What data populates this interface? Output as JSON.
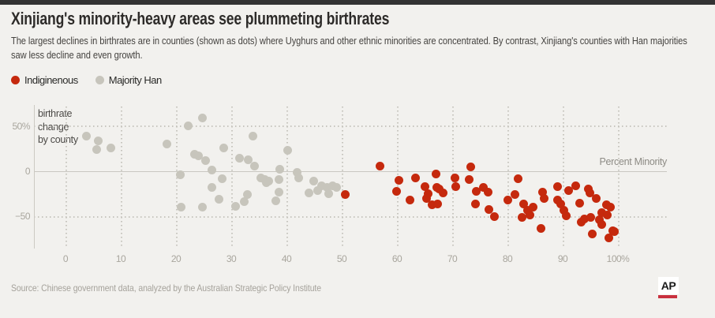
{
  "page": {
    "background": "#f2f1ee",
    "top_bar_color": "#333333"
  },
  "header": {
    "title": "Xinjiang's minority-heavy areas see plummeting birthrates",
    "subtitle": "The largest declines in birthrates are in counties (shown as dots) where Uyghurs and other ethnic minorities are concentrated. By contrast, Xinjiang's counties with Han majorities saw less decline and even growth."
  },
  "legend": {
    "items": [
      {
        "label": "Indiginenous",
        "color": "#c5290d"
      },
      {
        "label": "Majority Han",
        "color": "#c7c5bc"
      }
    ]
  },
  "chart_data": {
    "type": "scatter",
    "title": "Xinjiang's minority-heavy areas see plummeting birthrates",
    "xlabel": "Percent Minority",
    "ylabel": "birthrate change by county",
    "ylabel_lines": [
      "birthrate",
      "change",
      "by county"
    ],
    "xlim": [
      -6,
      109
    ],
    "ylim": [
      -85,
      72
    ],
    "grid": "dotted",
    "legend_position": "top-left",
    "x_ticks": [
      {
        "value": 0,
        "label": "0"
      },
      {
        "value": 10,
        "label": "10"
      },
      {
        "value": 20,
        "label": "20"
      },
      {
        "value": 30,
        "label": "30"
      },
      {
        "value": 40,
        "label": "40"
      },
      {
        "value": 50,
        "label": "50"
      },
      {
        "value": 60,
        "label": "60"
      },
      {
        "value": 70,
        "label": "70"
      },
      {
        "value": 80,
        "label": "80"
      },
      {
        "value": 90,
        "label": "90"
      },
      {
        "value": 100,
        "label": "100%"
      }
    ],
    "y_ticks": [
      {
        "value": 50,
        "label": "50%"
      },
      {
        "value": 0,
        "label": "0"
      },
      {
        "value": -50,
        "label": "−50"
      }
    ],
    "series": [
      {
        "name": "Majority Han",
        "color": "#c7c5bc",
        "points": [
          [
            3.8,
            39
          ],
          [
            5.9,
            34
          ],
          [
            5.7,
            24
          ],
          [
            8.2,
            26
          ],
          [
            18.3,
            30
          ],
          [
            20.8,
            -4
          ],
          [
            20.9,
            -40
          ],
          [
            22.2,
            50
          ],
          [
            23.3,
            19
          ],
          [
            24.1,
            17
          ],
          [
            24.8,
            59
          ],
          [
            25.3,
            12
          ],
          [
            24.8,
            -40
          ],
          [
            26.5,
            1
          ],
          [
            26.5,
            -18
          ],
          [
            27.8,
            -31
          ],
          [
            28.4,
            -8
          ],
          [
            28.6,
            26
          ],
          [
            31.5,
            14
          ],
          [
            30.8,
            -39
          ],
          [
            32.4,
            -34
          ],
          [
            33.1,
            13
          ],
          [
            32.9,
            -26
          ],
          [
            33.9,
            39
          ],
          [
            34.2,
            6
          ],
          [
            35.3,
            -7
          ],
          [
            36.0,
            -9
          ],
          [
            36.8,
            -11
          ],
          [
            36.3,
            -13
          ],
          [
            38.1,
            -33
          ],
          [
            38.8,
            2
          ],
          [
            38.6,
            -9
          ],
          [
            38.7,
            -23
          ],
          [
            40.2,
            23
          ],
          [
            41.9,
            -1
          ],
          [
            42.2,
            -7
          ],
          [
            44.0,
            -24
          ],
          [
            44.9,
            -11
          ],
          [
            45.6,
            -21
          ],
          [
            46.4,
            -16
          ],
          [
            47.3,
            -18
          ],
          [
            47.6,
            -25
          ],
          [
            48.3,
            -16
          ],
          [
            49.0,
            -18
          ]
        ]
      },
      {
        "name": "Indiginenous",
        "color": "#c5290d",
        "points": [
          [
            50.6,
            -26
          ],
          [
            56.9,
            6
          ],
          [
            60.3,
            -10
          ],
          [
            59.9,
            -22
          ],
          [
            62.4,
            -32
          ],
          [
            63.3,
            -7
          ],
          [
            65.0,
            -17
          ],
          [
            65.6,
            -25
          ],
          [
            65.3,
            -30
          ],
          [
            66.3,
            -37
          ],
          [
            67.0,
            -3
          ],
          [
            67.2,
            -18
          ],
          [
            67.6,
            -20
          ],
          [
            67.3,
            -36
          ],
          [
            68.4,
            -24
          ],
          [
            70.5,
            -7
          ],
          [
            70.7,
            -17
          ],
          [
            73.3,
            5
          ],
          [
            73.0,
            -9
          ],
          [
            74.4,
            -22
          ],
          [
            74.2,
            -36
          ],
          [
            75.7,
            -18
          ],
          [
            76.5,
            -23
          ],
          [
            76.7,
            -42
          ],
          [
            77.6,
            -50
          ],
          [
            80.1,
            -32
          ],
          [
            81.3,
            -26
          ],
          [
            81.9,
            -8
          ],
          [
            82.6,
            -51
          ],
          [
            82.9,
            -36
          ],
          [
            83.6,
            -43
          ],
          [
            84.0,
            -48
          ],
          [
            84.6,
            -40
          ],
          [
            86.0,
            -63
          ],
          [
            86.4,
            -23
          ],
          [
            86.7,
            -30
          ],
          [
            89.0,
            -17
          ],
          [
            89.1,
            -32
          ],
          [
            89.6,
            -36
          ],
          [
            90.2,
            -43
          ],
          [
            90.7,
            -49
          ],
          [
            91.0,
            -21
          ],
          [
            92.4,
            -16
          ],
          [
            93.1,
            -35
          ],
          [
            93.4,
            -56
          ],
          [
            93.9,
            -53
          ],
          [
            94.7,
            -20
          ],
          [
            94.9,
            -24
          ],
          [
            95.0,
            -51
          ],
          [
            95.3,
            -69
          ],
          [
            96.0,
            -30
          ],
          [
            96.6,
            -54
          ],
          [
            97.0,
            -46
          ],
          [
            97.1,
            -59
          ],
          [
            97.9,
            -37
          ],
          [
            98.0,
            -48
          ],
          [
            98.4,
            -74
          ],
          [
            98.6,
            -40
          ],
          [
            99.0,
            -66
          ],
          [
            99.3,
            -67
          ]
        ]
      }
    ]
  },
  "source": "Source: Chinese government data, analyzed by the Australian Strategic Policy Institute",
  "logo": {
    "text": "AP",
    "underline_color": "#c9313f"
  }
}
